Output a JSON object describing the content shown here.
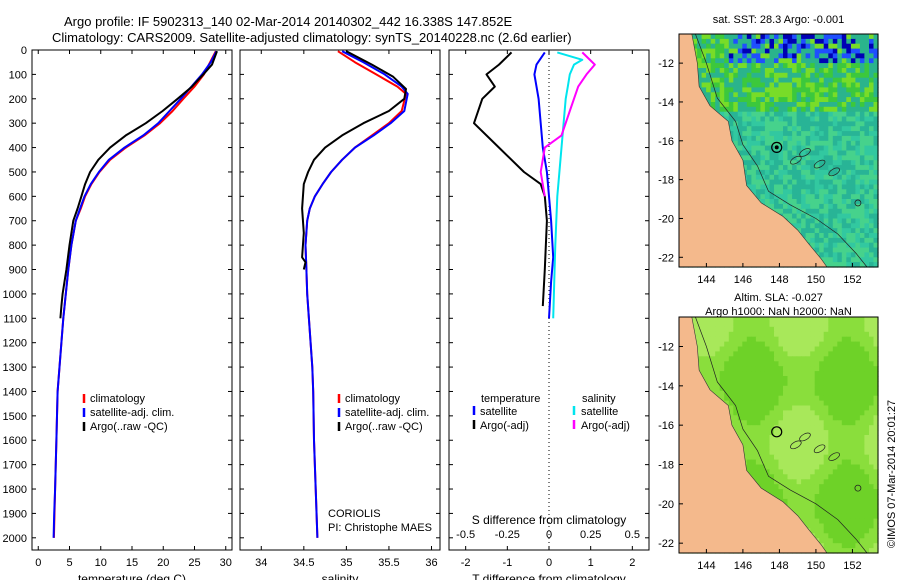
{
  "header": {
    "line1": "Argo profile: IF 5902313_140 02-Mar-2014 20140302_442 16.338S 147.852E",
    "line2": "Climatology: CARS2009. Satellite-adjusted climatology: synTS_20140228.nc (2.6d earlier)"
  },
  "colors": {
    "climatology": "#ff0000",
    "satellite": "#0000ff",
    "argo": "#000000",
    "sal_satellite": "#00e5ee",
    "sal_argo": "#ff00ff",
    "land": "#f4b98c"
  },
  "chart_data": [
    {
      "type": "line",
      "panel": "temperature",
      "xlabel": "temperature (deg C)",
      "ylabel": "",
      "xlim": [
        -1,
        31
      ],
      "ylim": [
        2050,
        0
      ],
      "xticks": [
        "0",
        "5",
        "10",
        "15",
        "20",
        "25",
        "30"
      ],
      "yticks": [
        "0",
        "100",
        "200",
        "300",
        "400",
        "500",
        "600",
        "700",
        "800",
        "900",
        "1000",
        "1100",
        "1200",
        "1300",
        "1400",
        "1500",
        "1600",
        "1700",
        "1800",
        "1900",
        "2000"
      ],
      "legend": [
        "climatology",
        "satellite-adj. clim.",
        "Argo(..raw -QC)"
      ],
      "series": [
        {
          "name": "climatology",
          "color": "#ff0000",
          "x": [
            28.4,
            27.5,
            26.5,
            25,
            23.2,
            21.5,
            19.5,
            17,
            14,
            11.5,
            9.8,
            8.5,
            7.5,
            6.8,
            6,
            5.3,
            4.8,
            4.4,
            4,
            3.7,
            3.4,
            3.1,
            2.9,
            2.7,
            2.6,
            2.5
          ],
          "y": [
            5,
            50,
            100,
            150,
            200,
            250,
            300,
            350,
            400,
            450,
            500,
            550,
            600,
            650,
            700,
            800,
            900,
            1000,
            1100,
            1200,
            1300,
            1400,
            1600,
            1800,
            1900,
            2000
          ]
        },
        {
          "name": "satellite-adj. clim.",
          "color": "#0000ff",
          "x": [
            28.5,
            27.6,
            26.2,
            24.5,
            22.8,
            21,
            19.2,
            16.8,
            13.8,
            11.3,
            9.7,
            8.4,
            7.4,
            6.7,
            6,
            5.3,
            4.8,
            4.4,
            4,
            3.7,
            3.4,
            3.1,
            2.9,
            2.7,
            2.55,
            2.45
          ],
          "y": [
            5,
            50,
            100,
            150,
            200,
            250,
            300,
            350,
            400,
            450,
            500,
            550,
            600,
            650,
            700,
            800,
            900,
            1000,
            1100,
            1200,
            1300,
            1400,
            1600,
            1800,
            1900,
            2000
          ]
        },
        {
          "name": "Argo(..raw -QC)",
          "color": "#000000",
          "x": [
            28.6,
            27.8,
            26.4,
            24.6,
            22.3,
            19.9,
            17.2,
            14,
            11.5,
            9.6,
            8.3,
            7.5,
            6.9,
            6.3,
            5.6,
            5,
            4.5,
            4.2,
            3.9,
            3.7,
            3.55
          ],
          "y": [
            5,
            60,
            100,
            150,
            200,
            250,
            300,
            350,
            400,
            450,
            500,
            550,
            600,
            650,
            700,
            800,
            900,
            950,
            1000,
            1050,
            1100
          ]
        }
      ]
    },
    {
      "type": "line",
      "panel": "salinity",
      "xlabel": "salinity",
      "xlim": [
        33.75,
        36.1
      ],
      "ylim": [
        2050,
        0
      ],
      "xticks": [
        "34",
        "34.5",
        "35",
        "35.5",
        "36"
      ],
      "legend": [
        "climatology",
        "satellite-adj. clim.",
        "Argo(..raw -QC)"
      ],
      "series": [
        {
          "name": "climatology",
          "color": "#ff0000",
          "x": [
            34.9,
            35.1,
            35.35,
            35.6,
            35.7,
            35.65,
            35.5,
            35.3,
            35.1,
            34.95,
            34.82,
            34.72,
            34.63,
            34.57,
            34.54,
            34.52,
            34.53,
            34.54,
            34.56,
            34.58,
            34.6,
            34.61,
            34.62,
            34.64,
            34.66
          ],
          "y": [
            5,
            50,
            100,
            150,
            180,
            250,
            300,
            350,
            400,
            450,
            500,
            550,
            600,
            650,
            700,
            800,
            900,
            1000,
            1100,
            1200,
            1300,
            1400,
            1600,
            1800,
            2000
          ]
        },
        {
          "name": "satellite-adj. clim.",
          "color": "#0000ff",
          "x": [
            34.95,
            35.2,
            35.45,
            35.65,
            35.72,
            35.68,
            35.52,
            35.32,
            35.1,
            34.95,
            34.82,
            34.72,
            34.63,
            34.57,
            34.54,
            34.52,
            34.53,
            34.54,
            34.56,
            34.58,
            34.6,
            34.61,
            34.62,
            34.64,
            34.66
          ],
          "y": [
            5,
            50,
            100,
            150,
            180,
            250,
            300,
            350,
            400,
            450,
            500,
            550,
            600,
            650,
            700,
            800,
            900,
            1000,
            1100,
            1200,
            1300,
            1400,
            1600,
            1800,
            2000
          ]
        },
        {
          "name": "Argo(..raw -QC)",
          "color": "#000000",
          "x": [
            35,
            35.3,
            35.55,
            35.7,
            35.68,
            35.5,
            35.2,
            34.95,
            34.75,
            34.62,
            34.55,
            34.5,
            34.48,
            34.5,
            34.48,
            34.52,
            34.5
          ],
          "y": [
            5,
            60,
            110,
            160,
            200,
            250,
            300,
            350,
            400,
            450,
            500,
            550,
            650,
            750,
            850,
            870,
            900
          ]
        }
      ]
    },
    {
      "type": "line",
      "panel": "difference",
      "xlabel": "T difference from climatology",
      "xlabel2": "S difference from climatology",
      "xlim": [
        -2.4,
        2.4
      ],
      "ylim": [
        2050,
        0
      ],
      "xticks": [
        "-2",
        "-1",
        "0",
        "1",
        "2"
      ],
      "xticks2": [
        "-0.5",
        "-0.25",
        "0",
        "0.25",
        "0.5"
      ],
      "legend": [
        "temperature",
        "satellite",
        "Argo(-adj)",
        "salinity",
        "satellite",
        "Argo(-adj)"
      ],
      "series": [
        {
          "name": "satellite",
          "color": "#0000ff",
          "x": [
            -0.1,
            -0.3,
            -0.35,
            -0.3,
            -0.25,
            -0.2,
            -0.15,
            -0.05,
            0,
            0.05,
            0.1,
            0.05,
            0
          ],
          "y": [
            10,
            60,
            100,
            150,
            200,
            300,
            400,
            500,
            600,
            700,
            850,
            950,
            1100
          ]
        },
        {
          "name": "Argo(-adj)",
          "color": "#000000",
          "x": [
            -0.9,
            -1.2,
            -1.5,
            -1.3,
            -1.6,
            -1.8,
            -1.2,
            -0.6,
            -0.2,
            -0.1,
            -0.05,
            -0.1,
            -0.15
          ],
          "y": [
            10,
            60,
            100,
            150,
            200,
            300,
            400,
            500,
            550,
            600,
            700,
            900,
            1050
          ]
        },
        {
          "name": "satellite",
          "color": "#00e5ee",
          "x": [
            0.2,
            0.8,
            0.6,
            0.5,
            0.45,
            0.4,
            0.35,
            0.3,
            0.25,
            0.2,
            0.15,
            0.1
          ],
          "y": [
            10,
            40,
            60,
            100,
            150,
            200,
            300,
            400,
            500,
            600,
            800,
            1100
          ]
        },
        {
          "name": "Argo(-adj)",
          "color": "#ff00ff",
          "x": [
            0.8,
            1.1,
            0.9,
            0.7,
            0.5,
            0.3,
            -0.1,
            -0.2,
            -0.1
          ],
          "y": [
            10,
            60,
            100,
            150,
            250,
            350,
            400,
            500,
            600
          ]
        }
      ]
    },
    {
      "type": "heatmap",
      "panel": "map-sst",
      "title": "sat. SST: 28.3 Argo: -0.001",
      "xticks": [
        "144",
        "146",
        "148",
        "150",
        "152"
      ],
      "yticks": [
        "-12",
        "-14",
        "-16",
        "-18",
        "-20",
        "-22"
      ],
      "xlim": [
        142.5,
        153.4
      ],
      "ylim": [
        -22.5,
        -10.5
      ],
      "float_lon": 147.852,
      "float_lat": -16.338
    },
    {
      "type": "heatmap",
      "panel": "map-sla",
      "title": "Altim. SLA: -0.027",
      "subtitle": "Argo h1000: NaN h2000: NaN",
      "xticks": [
        "144",
        "146",
        "148",
        "150",
        "152"
      ],
      "yticks": [
        "-12",
        "-14",
        "-16",
        "-18",
        "-20",
        "-22"
      ],
      "xlim": [
        142.5,
        153.4
      ],
      "ylim": [
        -22.5,
        -10.5
      ],
      "float_lon": 147.852,
      "float_lat": -16.338
    }
  ],
  "annotations": {
    "institution": "CORIOLIS",
    "pi": "PI: Christophe MAES",
    "credit": "©IMOS 07-Mar-2014 20:01:27"
  }
}
